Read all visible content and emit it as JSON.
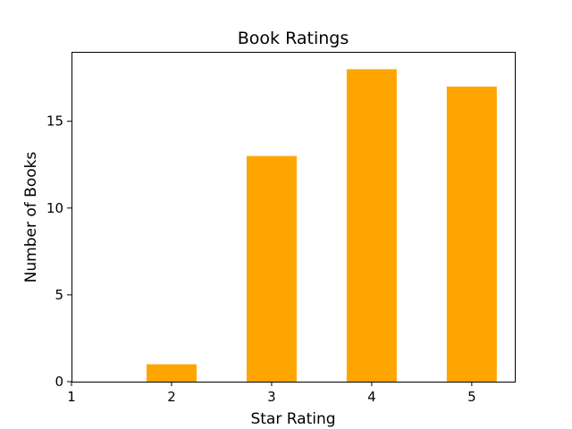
{
  "chart_data": {
    "type": "bar",
    "title": "Book Ratings",
    "xlabel": "Star Rating",
    "ylabel": "Number of Books",
    "categories": [
      2,
      3,
      4,
      5
    ],
    "values": [
      1,
      13,
      18,
      17
    ],
    "bar_color": "#FFA500",
    "xlim": [
      1,
      5.43
    ],
    "ylim": [
      0,
      19
    ],
    "xticks": [
      1,
      2,
      3,
      4,
      5
    ],
    "yticks": [
      0,
      5,
      10,
      15
    ],
    "grid": false,
    "legend": "none"
  }
}
